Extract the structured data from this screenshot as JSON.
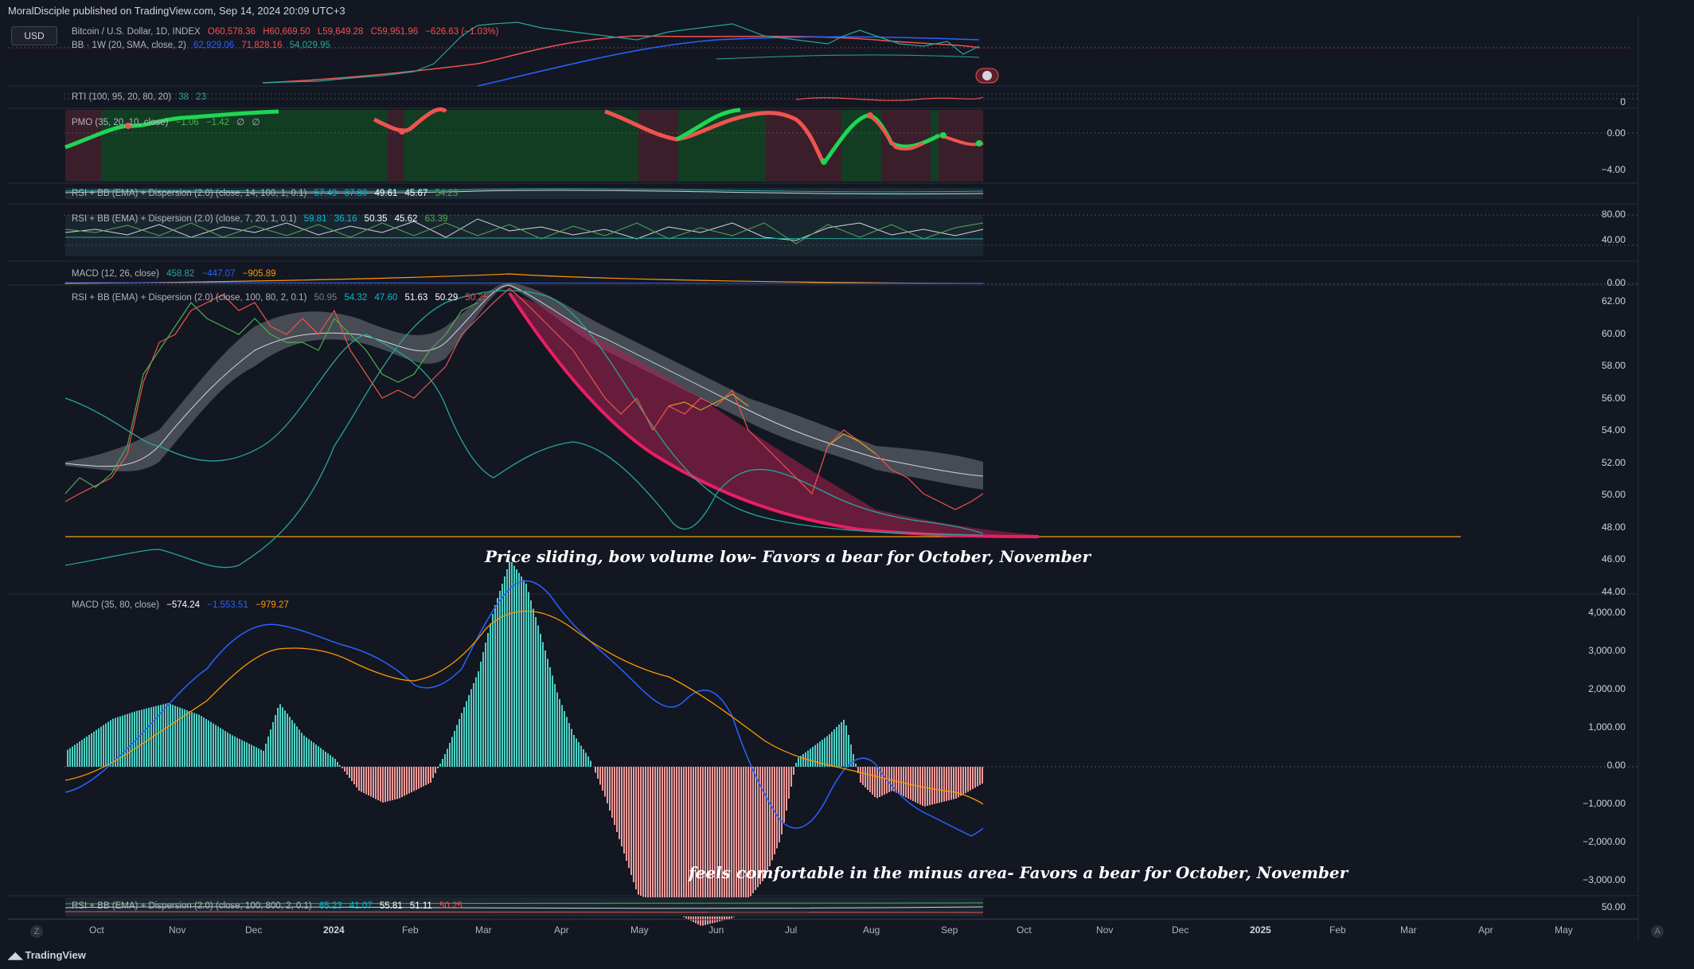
{
  "header": {
    "published": "MoralDisciple published on TradingView.com, Sep 14, 2024 20:09 UTC+3",
    "currency": "USD"
  },
  "panes": {
    "price": {
      "symbol": "Bitcoin / U.S. Dollar, 1D, INDEX",
      "open": "O60,578.36",
      "high": "H60,669.50",
      "low": "L59,649.28",
      "close": "C59,951.96",
      "change": "−626.63 (−1.03%)",
      "bb_label": "BB · 1W (20, SMA, close, 2)",
      "bb_values": [
        "62,929.06",
        "71,828.16",
        "54,029.95"
      ]
    },
    "rti": {
      "label": "RTI (100, 95, 20, 80, 20)",
      "values": [
        "38",
        "23"
      ],
      "axis": [
        "0"
      ]
    },
    "pmo": {
      "label": "PMO (35, 20, 10, close)",
      "values": [
        "−1.06",
        "−1.42",
        "∅",
        "∅"
      ],
      "axis": [
        "0.00",
        "−4.00"
      ]
    },
    "rsi1": {
      "label": "RSI + BB (EMA) + Dispersion (2.0) (close, 14, 100, 1, 0.1)",
      "values": [
        "57.49",
        "37.80",
        "49.61",
        "45.67",
        "54.23"
      ]
    },
    "rsi2": {
      "label": "RSI + BB (EMA) + Dispersion (2.0) (close, 7, 20, 1, 0.1)",
      "values": [
        "59.81",
        "36.16",
        "50.35",
        "45.62",
        "63.39"
      ],
      "axis": [
        "80.00",
        "40.00"
      ]
    },
    "macd1": {
      "label": "MACD (12, 26, close)",
      "values": [
        "458.82",
        "−447.07",
        "−905.89"
      ],
      "axis": [
        "0.00"
      ]
    },
    "rsi_main": {
      "label": "RSI + BB (EMA) + Dispersion (2.0) (close, 100, 80, 2, 0.1)",
      "values": [
        "50.95",
        "54.32",
        "47.60",
        "51.63",
        "50.29",
        "50.25"
      ],
      "axis": [
        "62.00",
        "60.00",
        "58.00",
        "56.00",
        "54.00",
        "52.00",
        "50.00",
        "48.00",
        "46.00",
        "44.00"
      ],
      "annotation": "Price sliding, bow volume low- Favors a bear for October, November"
    },
    "macd2": {
      "label": "MACD (35, 80, close)",
      "values": [
        "−574.24",
        "−1,553.51",
        "−979.27"
      ],
      "axis": [
        "4,000.00",
        "3,000.00",
        "2,000.00",
        "1,000.00",
        "0.00",
        "−1,000.00",
        "−2,000.00",
        "−3,000.00"
      ],
      "annotation": "feels comfortable in the minus area- Favors a bear for October, November"
    },
    "rsi_bottom": {
      "label": "RSI + BB (EMA) + Dispersion (2.0) (close, 100, 800, 2, 0.1)",
      "values": [
        "65.23",
        "41.07",
        "55.81",
        "51.11",
        "50.25"
      ],
      "axis": [
        "50.00"
      ]
    }
  },
  "time_axis": [
    "Oct",
    "Nov",
    "Dec",
    "2024",
    "Feb",
    "Mar",
    "Apr",
    "May",
    "Jun",
    "Jul",
    "Aug",
    "Sep",
    "Oct",
    "Nov",
    "Dec",
    "2025",
    "Feb",
    "Mar",
    "Apr",
    "May"
  ],
  "footer": {
    "brand": "TradingView",
    "left_btn": "Z",
    "right_btn": "A"
  },
  "colors": {
    "background": "#131722",
    "up": "#26a69a",
    "down": "#ef5350",
    "bear_arc": "#e91e63",
    "support_line": "#f0a30a",
    "macd_line": "#2962ff",
    "signal_line": "#ff9800"
  }
}
